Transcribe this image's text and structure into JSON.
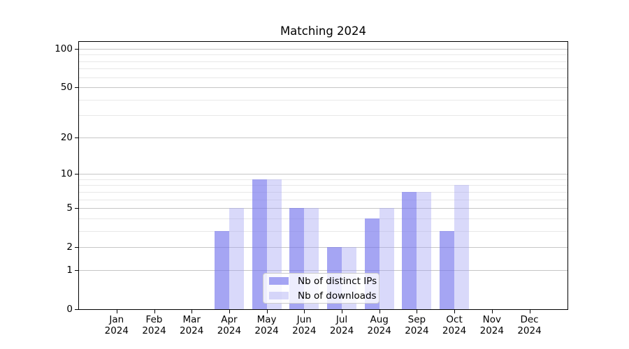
{
  "figure": {
    "background": "#ffffff"
  },
  "chart_data": {
    "type": "bar",
    "title": "Matching 2024",
    "categories": [
      "Jan",
      "Feb",
      "Mar",
      "Apr",
      "May",
      "Jun",
      "Jul",
      "Aug",
      "Sep",
      "Oct",
      "Nov",
      "Dec"
    ],
    "x_tick_year": "2024",
    "series": [
      {
        "name": "Nb of distinct IPs",
        "color": "rgba(116,116,236,0.65)",
        "values": [
          0,
          0,
          0,
          3,
          9,
          5,
          2,
          4,
          7,
          3,
          0,
          0
        ]
      },
      {
        "name": "Nb of downloads",
        "color": "rgba(160,160,242,0.40)",
        "values": [
          0,
          0,
          0,
          5,
          9,
          5,
          2,
          5,
          7,
          8,
          0,
          0
        ]
      }
    ],
    "y_axis": {
      "scale": "log1p",
      "major_ticks": [
        0,
        1,
        2,
        5,
        10,
        20,
        50,
        100
      ],
      "minor_ticks": [
        3,
        4,
        6,
        7,
        8,
        9,
        30,
        40,
        60,
        70,
        80,
        90
      ],
      "ylim": [
        0,
        115
      ]
    },
    "legend_position": "lower-center",
    "grid": true,
    "colors": {
      "grid_major": "#c6c6c6",
      "grid_minor": "#e8e8e8",
      "spine": "#000000",
      "legend_border": "#cccccc",
      "legend_bg": "rgba(255,255,255,0.8)",
      "text": "#000000"
    }
  }
}
